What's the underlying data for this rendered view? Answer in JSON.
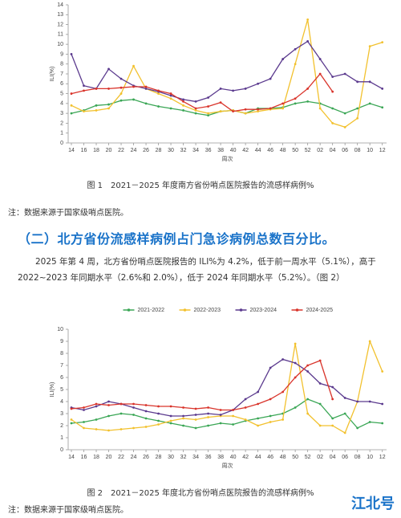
{
  "chart_data": [
    {
      "type": "line",
      "ylabel": "ILI(%)",
      "xlabel": "周次",
      "categories": [
        "14",
        "16",
        "18",
        "20",
        "22",
        "24",
        "26",
        "28",
        "30",
        "32",
        "34",
        "36",
        "38",
        "40",
        "42",
        "44",
        "46",
        "48",
        "50",
        "52",
        "02",
        "04",
        "06",
        "08",
        "10",
        "12"
      ],
      "ylim": [
        0,
        14
      ],
      "yticks": [
        0,
        1,
        2,
        3,
        4,
        5,
        6,
        7,
        8,
        9,
        10,
        11,
        12,
        13,
        14
      ],
      "grid": false,
      "series": [
        {
          "color": "#3aa655",
          "values": [
            3.0,
            3.3,
            3.8,
            3.9,
            4.3,
            4.4,
            4.0,
            3.7,
            3.5,
            3.3,
            3.0,
            2.8,
            3.2,
            3.3,
            3.0,
            3.5,
            3.5,
            3.6,
            4.0,
            4.2,
            4.0,
            3.5,
            3.0,
            3.5,
            4.0,
            3.6
          ]
        },
        {
          "color": "#f2c12e",
          "values": [
            3.8,
            3.2,
            3.3,
            3.5,
            5.0,
            7.8,
            5.5,
            5.0,
            4.5,
            3.8,
            3.3,
            3.0,
            3.2,
            3.3,
            3.0,
            3.2,
            3.4,
            3.5,
            8.0,
            12.5,
            3.5,
            2.0,
            1.6,
            2.5,
            9.8,
            10.2
          ]
        },
        {
          "color": "#5b3a8e",
          "values": [
            9.0,
            5.8,
            5.5,
            7.5,
            6.5,
            5.8,
            5.5,
            5.2,
            4.8,
            4.4,
            4.2,
            4.6,
            5.5,
            5.3,
            5.5,
            6.0,
            6.5,
            8.5,
            9.5,
            10.3,
            8.5,
            6.7,
            7.0,
            6.2,
            6.2,
            5.5
          ]
        },
        {
          "color": "#d9342b",
          "values": [
            5.0,
            5.3,
            5.5,
            5.5,
            5.6,
            5.7,
            5.7,
            5.3,
            5.0,
            4.2,
            3.5,
            3.7,
            4.1,
            3.2,
            3.4,
            3.4,
            3.5,
            4.0,
            4.5,
            5.5,
            7.0,
            5.2,
            null,
            null,
            null,
            null
          ]
        }
      ]
    },
    {
      "type": "line",
      "ylabel": "ILI(%)",
      "xlabel": "周次",
      "legend": "top",
      "categories": [
        "14",
        "16",
        "18",
        "20",
        "22",
        "24",
        "26",
        "28",
        "30",
        "32",
        "34",
        "36",
        "38",
        "40",
        "42",
        "44",
        "46",
        "48",
        "50",
        "52",
        "02",
        "04",
        "06",
        "08",
        "10",
        "12"
      ],
      "ylim": [
        0,
        10
      ],
      "yticks": [
        0,
        1,
        2,
        3,
        4,
        5,
        6,
        7,
        8,
        9,
        10
      ],
      "grid": false,
      "series": [
        {
          "name": "2021-2022",
          "color": "#3aa655",
          "values": [
            2.2,
            2.3,
            2.5,
            2.8,
            3.0,
            2.9,
            2.6,
            2.4,
            2.2,
            2.0,
            1.8,
            2.0,
            2.2,
            2.1,
            2.4,
            2.6,
            2.8,
            3.0,
            3.5,
            4.2,
            3.8,
            2.6,
            3.0,
            1.8,
            2.3,
            2.2
          ]
        },
        {
          "name": "2022-2023",
          "color": "#f2c12e",
          "values": [
            2.5,
            1.8,
            1.7,
            1.6,
            1.7,
            1.8,
            1.9,
            2.1,
            2.4,
            2.6,
            2.5,
            2.7,
            2.8,
            2.8,
            2.5,
            2.0,
            2.3,
            2.5,
            8.8,
            3.0,
            2.0,
            2.0,
            1.4,
            4.0,
            9.0,
            6.5
          ]
        },
        {
          "name": "2023-2024",
          "color": "#5b3a8e",
          "values": [
            3.5,
            3.3,
            3.6,
            4.0,
            3.8,
            3.5,
            3.2,
            3.0,
            2.8,
            2.8,
            2.9,
            3.0,
            2.9,
            3.3,
            4.2,
            4.8,
            6.8,
            7.5,
            7.2,
            6.5,
            5.5,
            5.2,
            4.3,
            4.0,
            4.0,
            3.8
          ]
        },
        {
          "name": "2024-2025",
          "color": "#d9342b",
          "values": [
            3.4,
            3.5,
            3.8,
            3.7,
            3.8,
            3.8,
            3.7,
            3.6,
            3.6,
            3.5,
            3.4,
            3.5,
            3.3,
            3.3,
            3.5,
            3.8,
            4.2,
            4.8,
            6.0,
            7.0,
            7.4,
            4.2,
            null,
            null,
            null,
            null
          ]
        }
      ]
    }
  ],
  "document": {
    "caption1": "图 1　2021－2025 年度南方省份哨点医院报告的流感样病例%",
    "note1": "注：数据来源于国家级哨点医院。",
    "heading": "（二）北方省份流感样病例占门急诊病例总数百分比。",
    "paragraph": "2025 年第 4 周，北方省份哨点医院报告的 ILI%为 4.2%，低于前一周水平（5.1%），高于 2022~2023 年同期水平（2.6%和 2.0%），低于 2024 年同期水平（5.2%）。（图 2）",
    "caption2": "图 2　2021－2025 年度北方省份哨点医院报告的流感样病例%",
    "note2": "注：数据来源于国家级哨点医院。",
    "watermark": "江北号"
  }
}
